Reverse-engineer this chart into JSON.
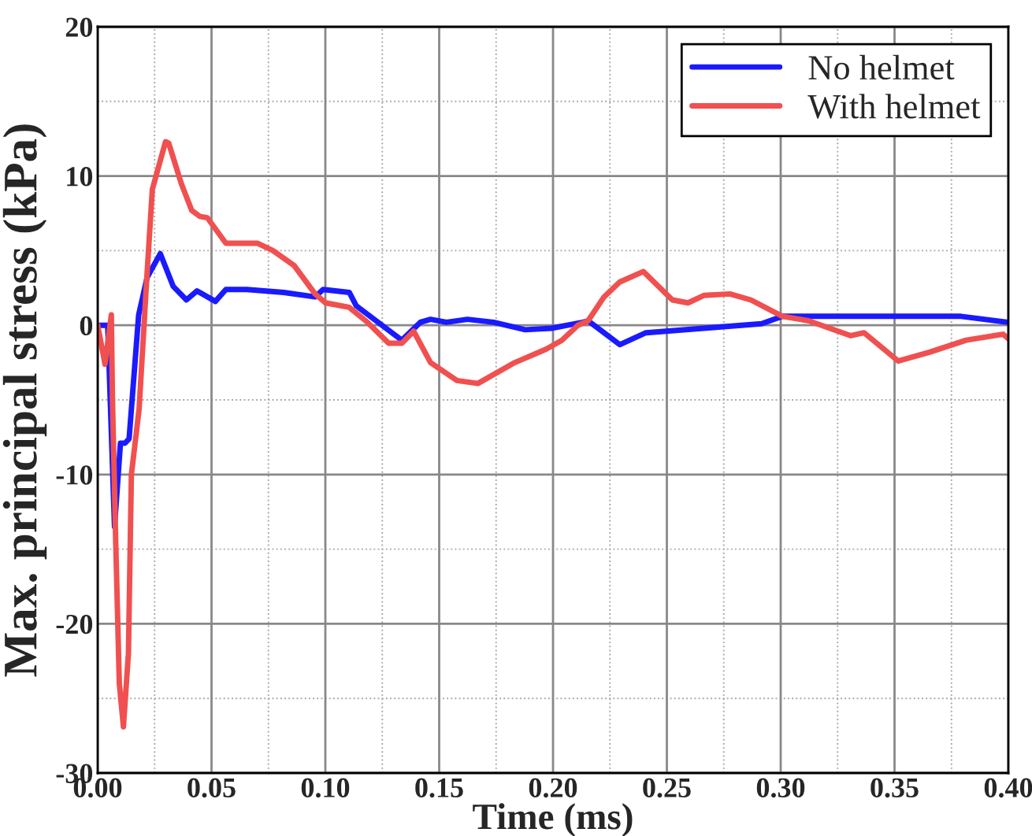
{
  "chart_data": {
    "type": "line",
    "xlabel": "Time (ms)",
    "ylabel": "Max. principal stress (kPa)",
    "xlim": [
      0,
      0.4
    ],
    "xticks": [
      {
        "value": 0,
        "label": "0.00"
      },
      {
        "value": 0.05,
        "label": "0.05"
      },
      {
        "value": 0.1,
        "label": "0.10"
      },
      {
        "value": 0.15,
        "label": "0.15"
      },
      {
        "value": 0.2,
        "label": "0.20"
      },
      {
        "value": 0.25,
        "label": "0.25"
      },
      {
        "value": 0.3,
        "label": "0.30"
      },
      {
        "value": 0.35,
        "label": "0.35"
      },
      {
        "value": 0.4,
        "label": "0.40"
      }
    ],
    "ylim": [
      -30,
      20
    ],
    "yticks": [
      -30,
      -20,
      -10,
      0,
      10,
      20
    ],
    "grid": true,
    "legend": "top right",
    "line_style": "solid",
    "marker": "none",
    "series": [
      {
        "name": "No helmet",
        "color": "#1a1aff",
        "x": [
          0,
          0.0044,
          0.0074,
          0.01,
          0.012,
          0.0138,
          0.018,
          0.0217,
          0.0275,
          0.0332,
          0.039,
          0.0436,
          0.0517,
          0.0563,
          0.0655,
          0.0817,
          0.0955,
          0.099,
          0.1105,
          0.1136,
          0.1232,
          0.1336,
          0.1417,
          0.1462,
          0.1532,
          0.1624,
          0.1739,
          0.1878,
          0.1993,
          0.2131,
          0.2154,
          0.2293,
          0.2408,
          0.2662,
          0.2916,
          0.3008,
          0.3239,
          0.3516,
          0.3792,
          0.4
        ],
        "values": [
          0,
          0,
          -13.5,
          -7.9,
          -7.9,
          -7.6,
          0.7,
          3.2,
          4.8,
          2.6,
          1.7,
          2.3,
          1.6,
          2.4,
          2.4,
          2.2,
          1.9,
          2.4,
          2.2,
          1.3,
          0.2,
          -1.0,
          0.2,
          0.4,
          0.2,
          0.4,
          0.2,
          -0.3,
          -0.2,
          0.2,
          0.3,
          -1.3,
          -0.5,
          -0.2,
          0.1,
          0.6,
          0.6,
          0.6,
          0.6,
          0.2
        ]
      },
      {
        "name": "With helmet",
        "color": "#f05050",
        "x": [
          0,
          0.0032,
          0.006,
          0.0065,
          0.008,
          0.0095,
          0.0113,
          0.0135,
          0.0148,
          0.0182,
          0.0217,
          0.024,
          0.0298,
          0.0312,
          0.0367,
          0.0413,
          0.0448,
          0.0482,
          0.0563,
          0.0701,
          0.077,
          0.0863,
          0.0955,
          0.1001,
          0.1105,
          0.1185,
          0.1278,
          0.1336,
          0.1388,
          0.1462,
          0.1578,
          0.167,
          0.1832,
          0.197,
          0.2039,
          0.2109,
          0.2154,
          0.2224,
          0.2293,
          0.2397,
          0.2524,
          0.2593,
          0.2662,
          0.2777,
          0.2869,
          0.3008,
          0.3123,
          0.3308,
          0.3366,
          0.3516,
          0.3654,
          0.3815,
          0.3977,
          0.4
        ],
        "values": [
          0,
          -2.6,
          0.7,
          -5,
          -15,
          -24,
          -26.9,
          -22,
          -10,
          -5.6,
          3.5,
          9.1,
          12.3,
          12.2,
          9.5,
          7.7,
          7.3,
          7.2,
          5.5,
          5.5,
          5.0,
          4.0,
          2.1,
          1.5,
          1.2,
          0.2,
          -1.2,
          -1.2,
          -0.4,
          -2.5,
          -3.7,
          -3.9,
          -2.5,
          -1.6,
          -1.0,
          0,
          0.3,
          1.9,
          2.9,
          3.6,
          1.7,
          1.5,
          2.0,
          2.1,
          1.7,
          0.6,
          0.3,
          -0.7,
          -0.5,
          -2.4,
          -1.8,
          -1.0,
          -0.6,
          -0.9
        ]
      }
    ]
  }
}
